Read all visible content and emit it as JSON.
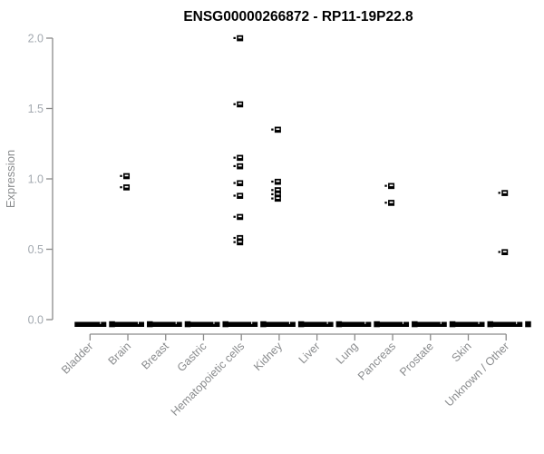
{
  "window": {
    "title": "ENSG00000266872 - RP11-19P22.8"
  },
  "chart_data": {
    "type": "scatter",
    "title": "ENSG00000266872 - RP11-19P22.8",
    "xlabel": "",
    "ylabel": "Expression",
    "ylim": [
      0.0,
      2.0
    ],
    "yticks": [
      0,
      0.5,
      1,
      1.5,
      2
    ],
    "ytick_labels": [
      "0.0",
      "0.5",
      "1.0",
      "1.5",
      "2.0"
    ],
    "grid": false,
    "legend": "none",
    "categories": [
      "Bladder",
      "Brain",
      "Breast",
      "Gastric",
      "Hematopoietic cells",
      "Kidney",
      "Liver",
      "Lung",
      "Pancreas",
      "Prostate",
      "Skin",
      "Unknown / Other"
    ],
    "series": [
      {
        "name": "Bladder",
        "zero_cluster": true,
        "points": []
      },
      {
        "name": "Brain",
        "zero_cluster": true,
        "points": [
          1.02,
          0.94
        ]
      },
      {
        "name": "Breast",
        "zero_cluster": true,
        "points": []
      },
      {
        "name": "Gastric",
        "zero_cluster": true,
        "points": []
      },
      {
        "name": "Hematopoietic cells",
        "zero_cluster": true,
        "points": [
          2.0,
          1.53,
          1.15,
          1.09,
          0.97,
          0.88,
          0.73,
          0.58,
          0.55
        ]
      },
      {
        "name": "Kidney",
        "zero_cluster": true,
        "points": [
          1.35,
          0.98,
          0.92,
          0.89,
          0.86
        ]
      },
      {
        "name": "Liver",
        "zero_cluster": true,
        "points": []
      },
      {
        "name": "Lung",
        "zero_cluster": true,
        "points": []
      },
      {
        "name": "Pancreas",
        "zero_cluster": true,
        "points": [
          0.95,
          0.83
        ]
      },
      {
        "name": "Prostate",
        "zero_cluster": true,
        "points": []
      },
      {
        "name": "Skin",
        "zero_cluster": true,
        "points": []
      },
      {
        "name": "Unknown / Other",
        "zero_cluster": true,
        "points": [
          0.9,
          0.48
        ]
      }
    ],
    "colors": {
      "marker": "#000000",
      "axis": "#8a8a8a",
      "tick_label": "#a3a9b0",
      "category_label": "#8a8c8e",
      "title": "#000000",
      "background": "#ffffff"
    }
  }
}
